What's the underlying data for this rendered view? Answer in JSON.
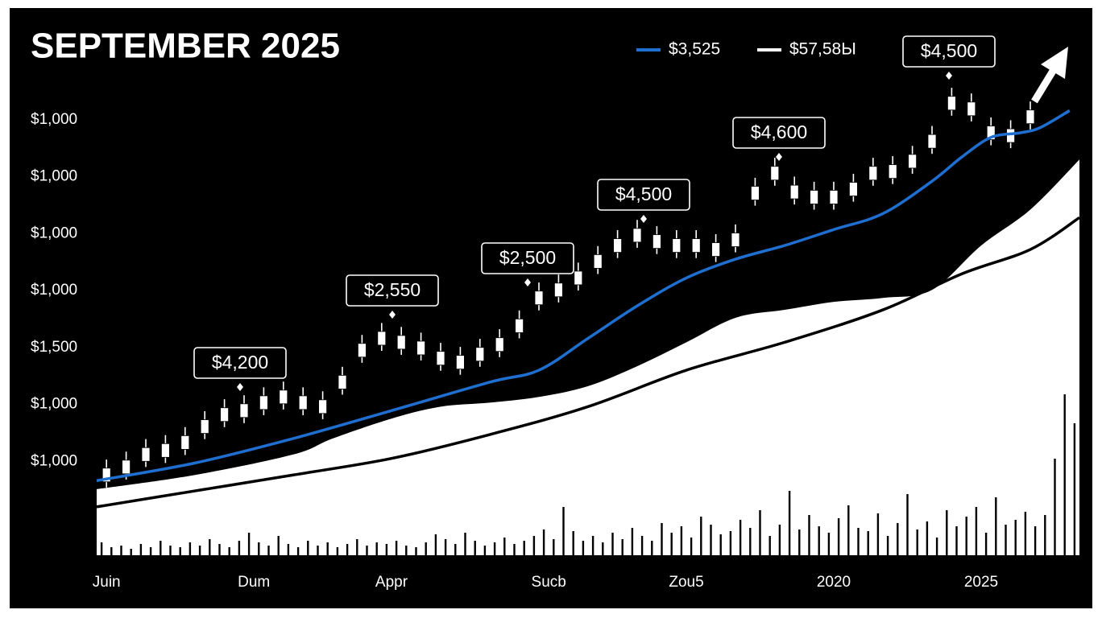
{
  "chart_data": {
    "type": "candlestick",
    "title": "SEPTEMBER 2025",
    "xlim": [
      0,
      100
    ],
    "xticks": [
      {
        "value": 1,
        "label": "Juin"
      },
      {
        "value": 16,
        "label": "Dum"
      },
      {
        "value": 30,
        "label": "Appr"
      },
      {
        "value": 46,
        "label": "Sucb"
      },
      {
        "value": 60,
        "label": "Zou5"
      },
      {
        "value": 75,
        "label": "2020"
      },
      {
        "value": 90,
        "label": "2025"
      }
    ],
    "ylim": [
      -0.65,
      8
    ],
    "yticks": [
      {
        "value": 1,
        "label": "$1,000"
      },
      {
        "value": 2,
        "label": "$1,000"
      },
      {
        "value": 3,
        "label": "$1,500"
      },
      {
        "value": 4,
        "label": "$1,000"
      },
      {
        "value": 5,
        "label": "$1,000"
      },
      {
        "value": 6,
        "label": "$1,000"
      },
      {
        "value": 7,
        "label": "$1,000"
      }
    ],
    "y2lim": [
      0,
      100
    ],
    "candles": {
      "color": "#ffffff",
      "x": [
        1,
        3,
        5,
        7,
        9,
        11,
        13,
        15,
        17,
        19,
        21,
        23,
        25,
        27,
        29,
        31,
        33,
        35,
        37,
        39,
        41,
        43,
        45,
        47,
        49,
        51,
        53,
        55,
        57,
        59,
        61,
        63,
        65,
        67,
        69,
        71,
        73,
        75,
        77,
        79,
        81,
        83,
        85,
        87,
        89,
        91,
        93,
        95
      ],
      "open": [
        0.64,
        0.78,
        1.0,
        1.07,
        1.21,
        1.49,
        1.7,
        1.77,
        1.91,
        2.25,
        2.15,
        1.84,
        2.27,
        2.83,
        3.28,
        3.21,
        3.11,
        2.93,
        2.62,
        2.76,
        2.93,
        3.26,
        3.75,
        3.89,
        4.1,
        4.39,
        4.67,
        5.09,
        4.98,
        4.91,
        4.91,
        4.6,
        4.77,
        5.59,
        6.18,
        5.85,
        5.76,
        5.52,
        5.66,
        5.94,
        5.97,
        6.15,
        6.5,
        7.41,
        7.31,
        6.89,
        6.6,
        6.93
      ],
      "high": [
        1.03,
        1.17,
        1.39,
        1.46,
        1.6,
        1.88,
        2.09,
        2.16,
        2.3,
        2.4,
        2.3,
        2.23,
        2.66,
        3.22,
        3.43,
        3.36,
        3.26,
        3.08,
        3.01,
        3.15,
        3.32,
        3.65,
        4.14,
        4.28,
        4.49,
        4.78,
        5.06,
        5.24,
        5.13,
        5.06,
        5.06,
        4.99,
        5.16,
        5.98,
        6.33,
        6.0,
        5.91,
        5.91,
        6.05,
        6.33,
        6.36,
        6.54,
        6.89,
        7.56,
        7.46,
        7.04,
        6.99,
        7.32
      ],
      "low": [
        0.54,
        0.68,
        0.9,
        0.97,
        1.11,
        1.39,
        1.6,
        1.67,
        1.81,
        1.91,
        1.81,
        1.74,
        2.17,
        2.73,
        2.94,
        2.87,
        2.77,
        2.59,
        2.52,
        2.66,
        2.83,
        3.16,
        3.65,
        3.79,
        4.0,
        4.29,
        4.57,
        4.75,
        4.64,
        4.57,
        4.57,
        4.5,
        4.67,
        5.49,
        5.84,
        5.51,
        5.42,
        5.42,
        5.56,
        5.84,
        5.87,
        6.05,
        6.4,
        7.07,
        6.97,
        6.55,
        6.5,
        6.83
      ],
      "close": [
        0.88,
        1.02,
        1.24,
        1.31,
        1.45,
        1.73,
        1.94,
        2.01,
        2.15,
        2.01,
        1.91,
        2.08,
        2.51,
        3.07,
        3.04,
        2.97,
        2.87,
        2.69,
        2.86,
        3.0,
        3.17,
        3.5,
        3.99,
        4.13,
        4.34,
        4.63,
        4.91,
        4.85,
        4.74,
        4.67,
        4.67,
        4.84,
        5.01,
        5.83,
        5.94,
        5.61,
        5.52,
        5.76,
        5.9,
        6.18,
        6.21,
        6.39,
        6.74,
        7.17,
        7.07,
        6.65,
        6.84,
        7.17
      ]
    },
    "band": {
      "type": "area",
      "color": "#ffffff",
      "x": [
        0,
        10,
        20,
        24,
        30,
        35,
        40,
        45,
        50,
        55,
        60,
        65,
        70,
        75,
        80,
        85,
        90,
        95,
        100
      ],
      "values": [
        0.51,
        0.76,
        1.12,
        1.4,
        1.75,
        1.96,
        2.03,
        2.13,
        2.32,
        2.67,
        3.09,
        3.52,
        3.66,
        3.8,
        3.87,
        4.01,
        4.79,
        5.42,
        6.3
      ]
    },
    "volume": {
      "type": "bar",
      "axis": "y2",
      "color": "#000000",
      "values": [
        8,
        5,
        6,
        4,
        7,
        5,
        9,
        6,
        5,
        8,
        6,
        10,
        7,
        5,
        9,
        14,
        8,
        6,
        12,
        7,
        5,
        9,
        6,
        8,
        5,
        7,
        10,
        6,
        8,
        7,
        9,
        6,
        5,
        8,
        13,
        10,
        7,
        14,
        9,
        6,
        8,
        11,
        7,
        9,
        12,
        16,
        10,
        30,
        15,
        9,
        12,
        8,
        14,
        10,
        17,
        12,
        9,
        20,
        14,
        18,
        11,
        24,
        19,
        13,
        15,
        22,
        17,
        28,
        12,
        19,
        40,
        16,
        25,
        18,
        14,
        23,
        31,
        17,
        15,
        26,
        12,
        20,
        38,
        16,
        21,
        11,
        28,
        18,
        24,
        30,
        14,
        36,
        19,
        22,
        27,
        18,
        25,
        60,
        100,
        82
      ]
    },
    "series": [
      {
        "name": "$3,525",
        "type": "line",
        "color": "#1f6fd1",
        "x": [
          0,
          10,
          20,
          30,
          40,
          45,
          50,
          55,
          60,
          65,
          70,
          75,
          80,
          85,
          88,
          91,
          94,
          96,
          99
        ],
        "values": [
          0.66,
          0.97,
          1.4,
          1.89,
          2.39,
          2.6,
          3.16,
          3.73,
          4.22,
          4.55,
          4.79,
          5.07,
          5.35,
          5.92,
          6.34,
          6.69,
          6.77,
          6.86,
          7.16
        ]
      },
      {
        "name": "$57,58Ы",
        "type": "line",
        "color": "#000000",
        "x": [
          0,
          10,
          20,
          30,
          40,
          50,
          60,
          70,
          80,
          88,
          95,
          100
        ],
        "values": [
          0.2,
          0.48,
          0.76,
          1.05,
          1.47,
          1.96,
          2.6,
          3.09,
          3.66,
          4.29,
          4.72,
          5.28
        ]
      }
    ],
    "annotations": [
      "$4,200",
      "$2,550",
      "$2,500",
      "$4,500",
      "$4,600",
      "$4,500"
    ],
    "legend": "top-right"
  }
}
